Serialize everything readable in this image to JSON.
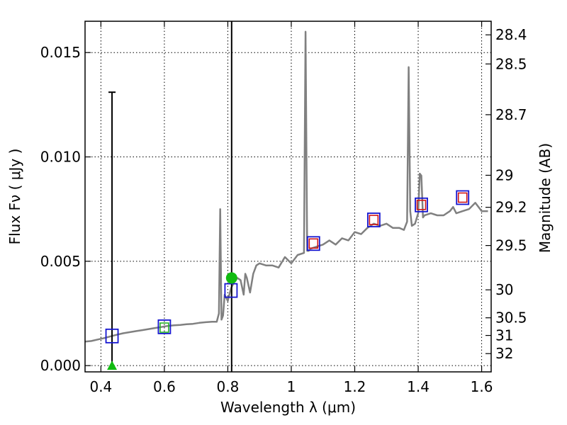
{
  "chart_data": {
    "type": "line",
    "xlabel": "Wavelength  λ (μm)",
    "ylabel_left": "Flux  Fν  ( μJy )",
    "ylabel_right": "Magnitude (AB)",
    "xlim": [
      0.35,
      1.63
    ],
    "ylim": [
      -0.0003,
      0.0165
    ],
    "grid": true,
    "x_ticks": [
      0.4,
      0.6,
      0.8,
      1.0,
      1.2,
      1.4,
      1.6
    ],
    "x_tick_labels": [
      "0.4",
      "0.6",
      "0.8",
      "1",
      "1.2",
      "1.4",
      "1.6"
    ],
    "y_ticks": [
      0.0,
      0.005,
      0.01,
      0.015
    ],
    "y_tick_labels": [
      "0.000",
      "0.005",
      "0.010",
      "0.015"
    ],
    "magnitude_ticks": [
      "28.4",
      "28.5",
      "28.7",
      "29",
      "29.2",
      "29.5",
      "30",
      "30.5",
      "31",
      "32"
    ],
    "vertical_line_x": 0.812,
    "model_spectrum": {
      "color": "#808080",
      "x": [
        0.35,
        0.37,
        0.39,
        0.41,
        0.43,
        0.45,
        0.47,
        0.49,
        0.51,
        0.53,
        0.55,
        0.57,
        0.59,
        0.61,
        0.63,
        0.65,
        0.67,
        0.69,
        0.71,
        0.73,
        0.75,
        0.765,
        0.772,
        0.776,
        0.78,
        0.785,
        0.79,
        0.8,
        0.81,
        0.82,
        0.83,
        0.84,
        0.85,
        0.855,
        0.86,
        0.87,
        0.88,
        0.89,
        0.9,
        0.92,
        0.94,
        0.96,
        0.98,
        1.0,
        1.02,
        1.04,
        1.045,
        1.05,
        1.055,
        1.06,
        1.08,
        1.1,
        1.12,
        1.14,
        1.16,
        1.18,
        1.2,
        1.22,
        1.24,
        1.26,
        1.28,
        1.3,
        1.32,
        1.34,
        1.355,
        1.365,
        1.37,
        1.375,
        1.38,
        1.39,
        1.4,
        1.405,
        1.41,
        1.415,
        1.42,
        1.44,
        1.46,
        1.48,
        1.5,
        1.51,
        1.52,
        1.54,
        1.56,
        1.58,
        1.6,
        1.62
      ],
      "y": [
        0.00115,
        0.00118,
        0.00125,
        0.00132,
        0.0014,
        0.00148,
        0.00155,
        0.0016,
        0.00165,
        0.0017,
        0.00175,
        0.0018,
        0.00185,
        0.0019,
        0.00193,
        0.00195,
        0.00198,
        0.002,
        0.00205,
        0.00208,
        0.0021,
        0.0021,
        0.0025,
        0.0075,
        0.0022,
        0.0024,
        0.0034,
        0.0031,
        0.0037,
        0.004,
        0.0042,
        0.0041,
        0.0034,
        0.0044,
        0.0042,
        0.0035,
        0.0044,
        0.0048,
        0.0049,
        0.0048,
        0.0048,
        0.0047,
        0.0052,
        0.0049,
        0.0053,
        0.0054,
        0.016,
        0.0055,
        0.0055,
        0.0056,
        0.0057,
        0.0058,
        0.006,
        0.0058,
        0.0061,
        0.006,
        0.0064,
        0.0063,
        0.0066,
        0.0068,
        0.0067,
        0.0068,
        0.0066,
        0.0066,
        0.0065,
        0.0069,
        0.0143,
        0.0074,
        0.0067,
        0.0068,
        0.0073,
        0.0092,
        0.0091,
        0.0071,
        0.0072,
        0.0073,
        0.0072,
        0.0072,
        0.0074,
        0.0076,
        0.0073,
        0.0074,
        0.0075,
        0.0078,
        0.0074,
        0.0074
      ]
    },
    "observed_points": {
      "marker": "square",
      "color": "#1515d0",
      "x": [
        0.435,
        0.6,
        0.81,
        1.07,
        1.26,
        1.41,
        1.54
      ],
      "y": [
        0.00142,
        0.00186,
        0.0036,
        0.00585,
        0.00698,
        0.0077,
        0.00805
      ]
    },
    "model_points": {
      "marker": "square",
      "color_optical": "#28b428",
      "color_ir": "#d01515",
      "x": [
        0.6,
        1.07,
        1.26,
        1.41,
        1.54
      ],
      "y": [
        0.00182,
        0.00585,
        0.00698,
        0.0077,
        0.00805
      ]
    },
    "upper_limit_errorbar": {
      "x": 0.435,
      "y_low": 0.0,
      "y_high": 0.0131,
      "color": "#000000"
    },
    "upper_limit_marker": {
      "x": 0.435,
      "y": 0.0,
      "marker": "triangle",
      "color": "#11bb11"
    },
    "highlight_point": {
      "x": 0.812,
      "y": 0.0042,
      "marker": "circle",
      "color": "#11bb11"
    }
  }
}
